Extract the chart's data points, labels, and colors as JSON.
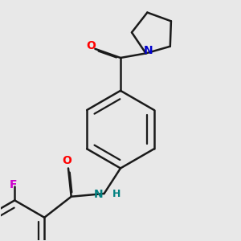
{
  "bg_color": "#e8e8e8",
  "bond_color": "#1a1a1a",
  "atom_colors": {
    "O": "#ff0000",
    "N_pyrrolidine": "#0000cc",
    "N_amide": "#008080",
    "F": "#cc00cc",
    "H": "#008080"
  },
  "lw": 1.8,
  "figsize": [
    3.0,
    3.0
  ],
  "dpi": 100
}
